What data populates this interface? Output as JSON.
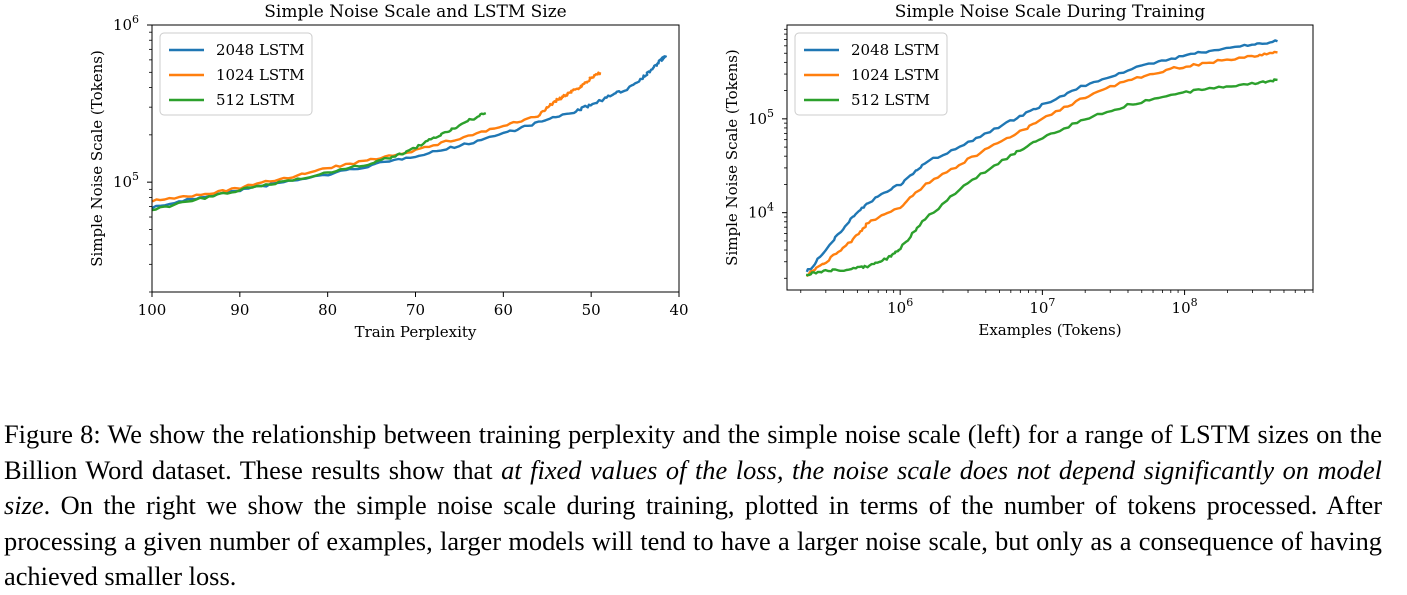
{
  "chart_data": [
    {
      "type": "line",
      "title": "Simple Noise Scale and LSTM Size",
      "xlabel": "Train Perplexity",
      "ylabel": "Simple Noise Scale (Tokens)",
      "x_scale": "linear",
      "x_reversed": true,
      "xlim": [
        100,
        40
      ],
      "y_scale": "log",
      "ylim": [
        20000,
        1000000
      ],
      "x_ticks": [
        100,
        90,
        80,
        70,
        60,
        50,
        40
      ],
      "y_ticks": [
        {
          "value": 100000,
          "base": "10",
          "exp": "5"
        },
        {
          "value": 1000000,
          "base": "10",
          "exp": "6"
        }
      ],
      "legend_position": "top-left",
      "series": [
        {
          "name": "2048 LSTM",
          "color": "#1f77b4",
          "x": [
            100,
            95,
            90,
            85,
            80,
            75,
            70,
            65,
            60,
            56,
            52,
            50,
            48,
            46,
            44,
            43,
            42,
            41.5
          ],
          "y": [
            69000,
            79000,
            89000,
            100000,
            112000,
            128000,
            147000,
            170000,
            205000,
            240000,
            280000,
            310000,
            350000,
            390000,
            470000,
            530000,
            600000,
            640000
          ]
        },
        {
          "name": "1024 LSTM",
          "color": "#ff7f0e",
          "x": [
            100,
            95,
            90,
            85,
            80,
            75,
            70,
            65,
            60,
            56,
            55,
            54,
            53,
            52,
            51,
            50,
            49
          ],
          "y": [
            76000,
            82000,
            92000,
            106000,
            122000,
            139000,
            160000,
            190000,
            228000,
            262000,
            300000,
            330000,
            355000,
            385000,
            410000,
            460000,
            500000
          ]
        },
        {
          "name": "512 LSTM",
          "color": "#2ca02c",
          "x": [
            100,
            95,
            90,
            85,
            80,
            75,
            72,
            70,
            68,
            66,
            64,
            62
          ],
          "y": [
            67000,
            77000,
            89000,
            101000,
            115000,
            132000,
            148000,
            165000,
            190000,
            215000,
            245000,
            275000
          ]
        }
      ]
    },
    {
      "type": "line",
      "title": "Simple Noise Scale During Training",
      "xlabel": "Examples (Tokens)",
      "ylabel": "Simple Noise Scale (Tokens)",
      "x_scale": "log",
      "xlim": [
        160000,
        800000000
      ],
      "y_scale": "log",
      "ylim": [
        1500,
        1000000
      ],
      "x_ticks": [
        {
          "value": 1000000,
          "base": "10",
          "exp": "6"
        },
        {
          "value": 10000000,
          "base": "10",
          "exp": "7"
        },
        {
          "value": 100000000,
          "base": "10",
          "exp": "8"
        }
      ],
      "y_ticks": [
        {
          "value": 10000,
          "base": "10",
          "exp": "4"
        },
        {
          "value": 100000,
          "base": "10",
          "exp": "5"
        }
      ],
      "legend_position": "top-left",
      "series": [
        {
          "name": "2048 LSTM",
          "color": "#1f77b4",
          "x": [
            220000,
            300000,
            450000,
            600000,
            1000000,
            1500000,
            3000000,
            6000000,
            10000000,
            20000000,
            40000000,
            80000000,
            150000000,
            300000000,
            450000000
          ],
          "y": [
            2300,
            4000,
            8500,
            13000,
            20000,
            34000,
            56000,
            95000,
            140000,
            230000,
            330000,
            440000,
            530000,
            620000,
            670000
          ]
        },
        {
          "name": "1024 LSTM",
          "color": "#ff7f0e",
          "x": [
            220000,
            300000,
            450000,
            600000,
            1000000,
            1500000,
            3000000,
            6000000,
            10000000,
            20000000,
            40000000,
            80000000,
            150000000,
            300000000,
            450000000
          ],
          "y": [
            2150,
            3000,
            5000,
            7800,
            11500,
            20000,
            37000,
            65000,
            100000,
            170000,
            260000,
            340000,
            400000,
            460000,
            510000
          ]
        },
        {
          "name": "512 LSTM",
          "color": "#2ca02c",
          "x": [
            220000,
            300000,
            450000,
            600000,
            800000,
            1000000,
            1500000,
            3000000,
            6000000,
            10000000,
            20000000,
            40000000,
            80000000,
            150000000,
            300000000,
            450000000
          ],
          "y": [
            2200,
            2400,
            2500,
            2700,
            3200,
            4200,
            8500,
            21000,
            41000,
            63000,
            100000,
            140000,
            180000,
            210000,
            240000,
            260000
          ]
        }
      ]
    }
  ],
  "caption": {
    "seg1": "Figure 8: We show the relationship between training perplexity and the simple noise scale (left) for a range of LSTM sizes on the Billion Word dataset. These results show that ",
    "emph1": "at fixed values of the loss, the noise scale does not depend significantly on model size",
    "seg2": ". On the right we show the simple noise scale during training, plotted in terms of the number of tokens processed. After processing a given number of examples, larger models will tend to have a larger noise scale, but only as a consequence of having achieved smaller loss."
  }
}
